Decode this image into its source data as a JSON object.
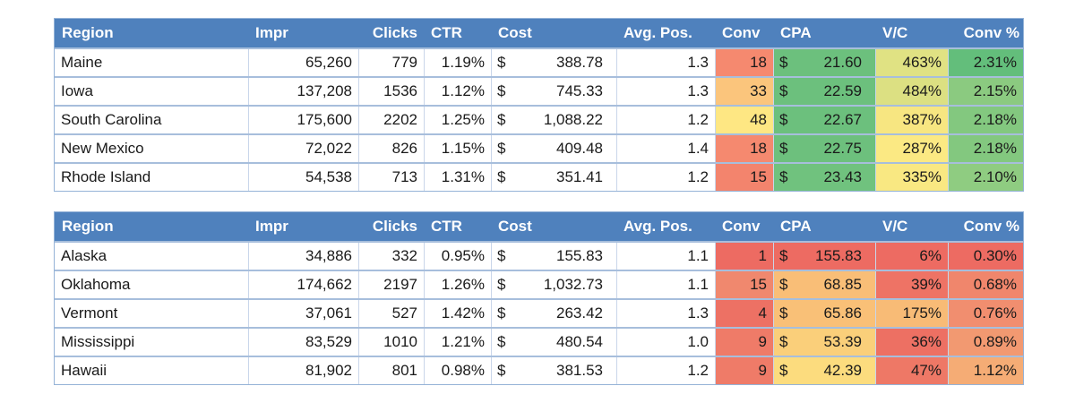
{
  "palette": {
    "header_bg": "#4F81BD",
    "header_text": "#FFFFFF",
    "row_bg": "#FFFFFF",
    "grid_horizontal": "#A7BEDC",
    "grid_vertical": "#C9D6EA",
    "outer_border": "#95B3D7",
    "scale_red": "#ED6B62",
    "scale_yellow": "#FEE783",
    "scale_green": "#63BE7B"
  },
  "columns": [
    "Region",
    "Impr",
    "Clicks",
    "CTR",
    "Cost",
    "Avg. Pos.",
    "Conv",
    "CPA",
    "V/C",
    "Conv %"
  ],
  "tables": [
    {
      "rows": [
        {
          "region": "Maine",
          "impr": "65,260",
          "clicks": "779",
          "ctr": "1.19%",
          "cost": {
            "cur": "$",
            "amt": "388.78"
          },
          "pos": "1.3",
          "conv": "18",
          "cpa": {
            "cur": "$",
            "amt": "21.60"
          },
          "vc": "463%",
          "cvr": "2.31%",
          "bg": {
            "conv": "#F5896F",
            "cpa": "#6CC07D",
            "vc": "#E0E283",
            "cvr": "#63BE7B"
          }
        },
        {
          "region": "Iowa",
          "impr": "137,208",
          "clicks": "1536",
          "ctr": "1.12%",
          "cost": {
            "cur": "$",
            "amt": "745.33"
          },
          "pos": "1.3",
          "conv": "33",
          "cpa": {
            "cur": "$",
            "amt": "22.59"
          },
          "vc": "484%",
          "cvr": "2.15%",
          "bg": {
            "conv": "#FBC57C",
            "cpa": "#6CC07D",
            "vc": "#DCE082",
            "cvr": "#8BCA80"
          }
        },
        {
          "region": "South Carolina",
          "impr": "175,600",
          "clicks": "2202",
          "ctr": "1.25%",
          "cost": {
            "cur": "$",
            "amt": "1,088.22"
          },
          "pos": "1.2",
          "conv": "48",
          "cpa": {
            "cur": "$",
            "amt": "22.67"
          },
          "vc": "387%",
          "cvr": "2.18%",
          "bg": {
            "conv": "#FEE783",
            "cpa": "#6CC07D",
            "vc": "#F7E681",
            "cvr": "#83C87F"
          }
        },
        {
          "region": "New Mexico",
          "impr": "72,022",
          "clicks": "826",
          "ctr": "1.15%",
          "cost": {
            "cur": "$",
            "amt": "409.48"
          },
          "pos": "1.4",
          "conv": "18",
          "cpa": {
            "cur": "$",
            "amt": "22.75"
          },
          "vc": "287%",
          "cvr": "2.18%",
          "bg": {
            "conv": "#F5896F",
            "cpa": "#6DC07D",
            "vc": "#FBE983",
            "cvr": "#83C87F"
          }
        },
        {
          "region": "Rhode Island",
          "impr": "54,538",
          "clicks": "713",
          "ctr": "1.31%",
          "cost": {
            "cur": "$",
            "amt": "351.41"
          },
          "pos": "1.2",
          "conv": "15",
          "cpa": {
            "cur": "$",
            "amt": "23.43"
          },
          "vc": "335%",
          "cvr": "2.10%",
          "bg": {
            "conv": "#F3846D",
            "cpa": "#70C27E",
            "vc": "#F9E882",
            "cvr": "#8FCC81"
          }
        }
      ]
    },
    {
      "rows": [
        {
          "region": "Alaska",
          "impr": "34,886",
          "clicks": "332",
          "ctr": "0.95%",
          "cost": {
            "cur": "$",
            "amt": "155.83"
          },
          "pos": "1.1",
          "conv": "1",
          "cpa": {
            "cur": "$",
            "amt": "155.83"
          },
          "vc": "6%",
          "cvr": "0.30%",
          "bg": {
            "conv": "#ED6B62",
            "cpa": "#ED6B62",
            "vc": "#ED6B62",
            "cvr": "#ED6B62"
          }
        },
        {
          "region": "Oklahoma",
          "impr": "174,662",
          "clicks": "2197",
          "ctr": "1.26%",
          "cost": {
            "cur": "$",
            "amt": "1,032.73"
          },
          "pos": "1.1",
          "conv": "15",
          "cpa": {
            "cur": "$",
            "amt": "68.85"
          },
          "vc": "39%",
          "cvr": "0.68%",
          "bg": {
            "conv": "#F0886E",
            "cpa": "#F9BE77",
            "vc": "#EE7365",
            "cvr": "#F0866C"
          }
        },
        {
          "region": "Vermont",
          "impr": "37,061",
          "clicks": "527",
          "ctr": "1.42%",
          "cost": {
            "cur": "$",
            "amt": "263.42"
          },
          "pos": "1.3",
          "conv": "4",
          "cpa": {
            "cur": "$",
            "amt": "65.86"
          },
          "vc": "175%",
          "cvr": "0.76%",
          "bg": {
            "conv": "#ED7164",
            "cpa": "#F9C077",
            "vc": "#F8BB76",
            "cvr": "#F18E6F"
          }
        },
        {
          "region": "Mississippi",
          "impr": "83,529",
          "clicks": "1010",
          "ctr": "1.21%",
          "cost": {
            "cur": "$",
            "amt": "480.54"
          },
          "pos": "1.0",
          "conv": "9",
          "cpa": {
            "cur": "$",
            "amt": "53.39"
          },
          "vc": "36%",
          "cvr": "0.89%",
          "bg": {
            "conv": "#EF7B68",
            "cpa": "#FACF7A",
            "vc": "#ED7063",
            "cvr": "#F29971"
          }
        },
        {
          "region": "Hawaii",
          "impr": "81,902",
          "clicks": "801",
          "ctr": "0.98%",
          "cost": {
            "cur": "$",
            "amt": "381.53"
          },
          "pos": "1.2",
          "conv": "9",
          "cpa": {
            "cur": "$",
            "amt": "42.39"
          },
          "vc": "47%",
          "cvr": "1.12%",
          "bg": {
            "conv": "#EF7B68",
            "cpa": "#FCDC7E",
            "vc": "#EE7866",
            "cvr": "#F5AC75"
          }
        }
      ]
    }
  ]
}
